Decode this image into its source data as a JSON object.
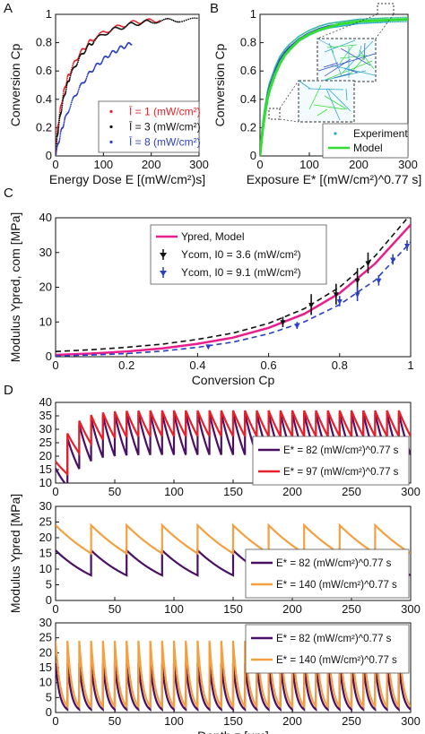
{
  "figure": {
    "panel_letters": [
      "A",
      "B",
      "C",
      "D"
    ]
  },
  "chart_data": [
    {
      "panel": "A",
      "type": "scatter",
      "xlabel": "Energy Dose E [(mW/cm²)s]",
      "ylabel": "Conversion Cp",
      "xlim": [
        0,
        300
      ],
      "ylim": [
        0,
        1
      ],
      "xticks": [
        0,
        100,
        200,
        300
      ],
      "yticks": [
        0,
        0.2,
        0.4,
        0.6,
        0.8,
        1
      ],
      "legend_position": "bottom-right",
      "series": [
        {
          "name": "Ī = 1 (mW/cm²)",
          "color": "#e8202a",
          "x": [
            0,
            3,
            6,
            10,
            15,
            20,
            25,
            30,
            40,
            50,
            60,
            70,
            80,
            100,
            120,
            140,
            160,
            180,
            200,
            220
          ],
          "y": [
            0,
            0.15,
            0.24,
            0.33,
            0.42,
            0.49,
            0.55,
            0.59,
            0.66,
            0.72,
            0.76,
            0.8,
            0.83,
            0.87,
            0.9,
            0.92,
            0.94,
            0.95,
            0.955,
            0.96
          ]
        },
        {
          "name": "Ī = 3 (mW/cm²)",
          "color": "#111111",
          "x": [
            0,
            3,
            6,
            10,
            15,
            20,
            25,
            30,
            40,
            50,
            60,
            70,
            80,
            100,
            120,
            140,
            160,
            180,
            200,
            230,
            260,
            300
          ],
          "y": [
            0,
            0.12,
            0.2,
            0.29,
            0.38,
            0.45,
            0.51,
            0.56,
            0.63,
            0.69,
            0.74,
            0.78,
            0.81,
            0.86,
            0.89,
            0.91,
            0.93,
            0.94,
            0.95,
            0.955,
            0.96,
            0.96
          ]
        },
        {
          "name": "Ī = 8 (mW/cm²)",
          "color": "#2b3fc4",
          "x": [
            0,
            5,
            10,
            15,
            20,
            30,
            40,
            50,
            60,
            70,
            80,
            90,
            100,
            110,
            120,
            130,
            140,
            150,
            160
          ],
          "y": [
            0,
            0.08,
            0.15,
            0.21,
            0.26,
            0.35,
            0.42,
            0.48,
            0.53,
            0.58,
            0.62,
            0.65,
            0.68,
            0.71,
            0.73,
            0.75,
            0.77,
            0.78,
            0.8
          ]
        }
      ]
    },
    {
      "panel": "B",
      "type": "scatter",
      "xlabel": "Exposure E* [(mW/cm²)^0.77 s]",
      "ylabel": "Conversion Cp",
      "xlim": [
        0,
        300
      ],
      "ylim": [
        0,
        1
      ],
      "xticks": [
        0,
        100,
        200,
        300
      ],
      "yticks": [
        0,
        0.2,
        0.4,
        0.6,
        0.8,
        1
      ],
      "legend_position": "bottom-right",
      "series": [
        {
          "name": "Experiment",
          "color": "#2aa8c9",
          "x": [
            0,
            3,
            6,
            10,
            15,
            20,
            30,
            40,
            50,
            60,
            80,
            100,
            120,
            140,
            160,
            180,
            200,
            230,
            260,
            300
          ],
          "y": [
            0,
            0.12,
            0.22,
            0.32,
            0.43,
            0.5,
            0.6,
            0.68,
            0.73,
            0.77,
            0.83,
            0.87,
            0.9,
            0.92,
            0.93,
            0.94,
            0.95,
            0.955,
            0.96,
            0.965
          ]
        },
        {
          "name": "Model",
          "color": "#33dd33",
          "x": [
            0,
            3,
            6,
            10,
            15,
            20,
            30,
            40,
            50,
            60,
            80,
            100,
            120,
            140,
            160,
            180,
            200,
            230,
            260,
            300
          ],
          "y": [
            0,
            0.11,
            0.2,
            0.3,
            0.4,
            0.47,
            0.57,
            0.65,
            0.71,
            0.75,
            0.82,
            0.86,
            0.89,
            0.91,
            0.93,
            0.94,
            0.95,
            0.955,
            0.96,
            0.965
          ]
        }
      ]
    },
    {
      "panel": "C",
      "type": "scatter",
      "xlabel": "Conversion Cp",
      "ylabel": "Modulus Ypred, com [MPa]",
      "xlim": [
        0,
        1
      ],
      "ylim": [
        0,
        40
      ],
      "xticks": [
        0,
        0.2,
        0.4,
        0.6,
        0.8,
        1.0
      ],
      "yticks": [
        0,
        10,
        20,
        30,
        40
      ],
      "legend_position": "top-center",
      "series": [
        {
          "name": "Ypred, Model",
          "color": "#e91e8c",
          "x": [
            0,
            0.1,
            0.2,
            0.3,
            0.4,
            0.5,
            0.6,
            0.7,
            0.8,
            0.9,
            1.0
          ],
          "y": [
            0.5,
            0.9,
            1.5,
            2.4,
            3.7,
            5.5,
            8.3,
            12.3,
            18.3,
            26.8,
            38
          ]
        },
        {
          "name": "upper bound",
          "color": "#111111",
          "x": [
            0,
            0.1,
            0.2,
            0.3,
            0.4,
            0.5,
            0.6,
            0.7,
            0.8,
            0.9,
            1.0
          ],
          "y": [
            1.5,
            2,
            2.7,
            3.6,
            5,
            6.8,
            9.6,
            13.8,
            20,
            29,
            41
          ]
        },
        {
          "name": "lower bound",
          "color": "#2b3fc4",
          "x": [
            0,
            0.1,
            0.2,
            0.3,
            0.4,
            0.5,
            0.6,
            0.7,
            0.8,
            0.9,
            1.0
          ],
          "y": [
            0.2,
            0.5,
            0.9,
            1.6,
            2.7,
            4.2,
            6.6,
            10,
            15,
            22,
            33
          ]
        },
        {
          "name": "Ycom, I0 = 3.6 (mW/cm²)",
          "color": "#111111",
          "x": [
            0.64,
            0.72,
            0.79,
            0.85,
            0.88
          ],
          "y": [
            10,
            15,
            18,
            22,
            27
          ],
          "err": [
            1.5,
            3,
            3,
            3.5,
            3
          ]
        },
        {
          "name": "Ycom, I0 = 9.1 (mW/cm²)",
          "color": "#2b3fc4",
          "x": [
            0.43,
            0.68,
            0.8,
            0.85,
            0.91,
            0.95,
            0.99
          ],
          "y": [
            3,
            9,
            16,
            18,
            22,
            28,
            32
          ],
          "err": [
            0.5,
            1,
            1.5,
            2,
            1.5,
            1.5,
            1.5
          ]
        }
      ]
    },
    {
      "panel": "D1",
      "type": "line",
      "xlabel": "",
      "ylabel": "",
      "xlim": [
        0,
        300
      ],
      "ylim": [
        10,
        40
      ],
      "xticks": [
        0,
        50,
        100,
        150,
        200,
        250,
        300
      ],
      "yticks": [
        10,
        15,
        20,
        25,
        30,
        35,
        40
      ],
      "legend_position": "bottom-right",
      "layer": 10,
      "series": [
        {
          "name": "E* = 82 (mW/cm²)^0.77 s",
          "color": "#4a1063",
          "start": 15.5,
          "end_ratio": 0.57,
          "asymptote": 36
        },
        {
          "name": "E* = 97 (mW/cm²)^0.77 s",
          "color": "#e8202a",
          "start": 18,
          "end_ratio": 0.74,
          "asymptote": 37
        }
      ]
    },
    {
      "panel": "D2",
      "type": "line",
      "xlabel": "",
      "ylabel": "Modulus Ypred [MPa]",
      "xlim": [
        0,
        300
      ],
      "ylim": [
        0,
        30
      ],
      "xticks": [
        0,
        50,
        100,
        150,
        200,
        250,
        300
      ],
      "yticks": [
        0,
        5,
        10,
        15,
        20,
        25,
        30
      ],
      "legend_position": "bottom-right",
      "layer": 30,
      "series": [
        {
          "name": "E* = 82 (mW/cm²)^0.77 s",
          "color": "#4a1063",
          "start": 16,
          "end": 8
        },
        {
          "name": "E* = 140 (mW/cm²)^0.77 s",
          "color": "#f5a040",
          "start": 24,
          "end": 15
        }
      ]
    },
    {
      "panel": "D3",
      "type": "line",
      "xlabel": "Depth z [µm]",
      "ylabel": "",
      "xlim": [
        0,
        3000
      ],
      "ylim": [
        0,
        30
      ],
      "xticks": [
        0,
        500,
        1000,
        1500,
        2000,
        2500,
        3000
      ],
      "xticklabels": [
        "0",
        "50",
        "100",
        "150",
        "200",
        "250",
        "300"
      ],
      "yticks": [
        0,
        5,
        10,
        15,
        20,
        25,
        30
      ],
      "legend_position": "top-right",
      "layer": 100,
      "series": [
        {
          "name": "E* = 82 (mW/cm²)^0.77 s",
          "color": "#4a1063",
          "start": 16.5,
          "end": 1
        },
        {
          "name": "E* = 140 (mW/cm²)^0.77 s",
          "color": "#f5a040",
          "start": 24,
          "end": 2
        }
      ]
    }
  ]
}
